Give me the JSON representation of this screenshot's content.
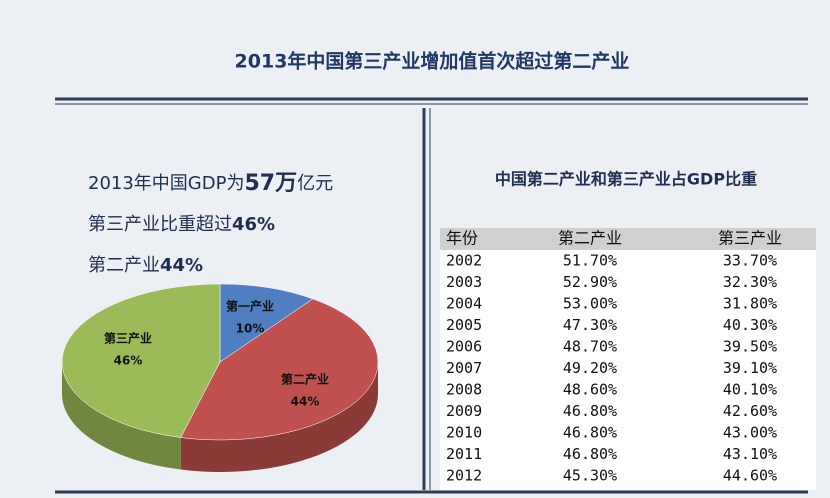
{
  "title": "2013年中国第三产业增加值首次超过第二产业",
  "summary": {
    "line1": [
      "2013年中国GDP为",
      "57万",
      "亿元"
    ],
    "line2": [
      "第三产业比重超过",
      "46%"
    ],
    "line3": [
      "第二产业",
      "44%"
    ]
  },
  "chart_data": {
    "type": "pie",
    "categories": [
      "第一产业",
      "第二产业",
      "第三产业"
    ],
    "values": [
      10,
      44,
      46
    ],
    "value_labels": [
      "10%",
      "44%",
      "46%"
    ],
    "colors": [
      "#4f7fc0",
      "#c0504d",
      "#9bbb59"
    ]
  },
  "table": {
    "title": "中国第二产业和第三产业占GDP比重",
    "header": [
      "年份",
      "第二产业",
      "第三产业"
    ],
    "rows": [
      [
        "2002",
        "51.70%",
        "33.70%"
      ],
      [
        "2003",
        "52.90%",
        "32.30%"
      ],
      [
        "2004",
        "53.00%",
        "31.80%"
      ],
      [
        "2005",
        "47.30%",
        "40.30%"
      ],
      [
        "2006",
        "48.70%",
        "39.50%"
      ],
      [
        "2007",
        "49.20%",
        "39.10%"
      ],
      [
        "2008",
        "48.60%",
        "40.10%"
      ],
      [
        "2009",
        "46.80%",
        "42.60%"
      ],
      [
        "2010",
        "46.80%",
        "43.00%"
      ],
      [
        "2011",
        "46.80%",
        "43.10%"
      ],
      [
        "2012",
        "45.30%",
        "44.60%"
      ]
    ]
  }
}
